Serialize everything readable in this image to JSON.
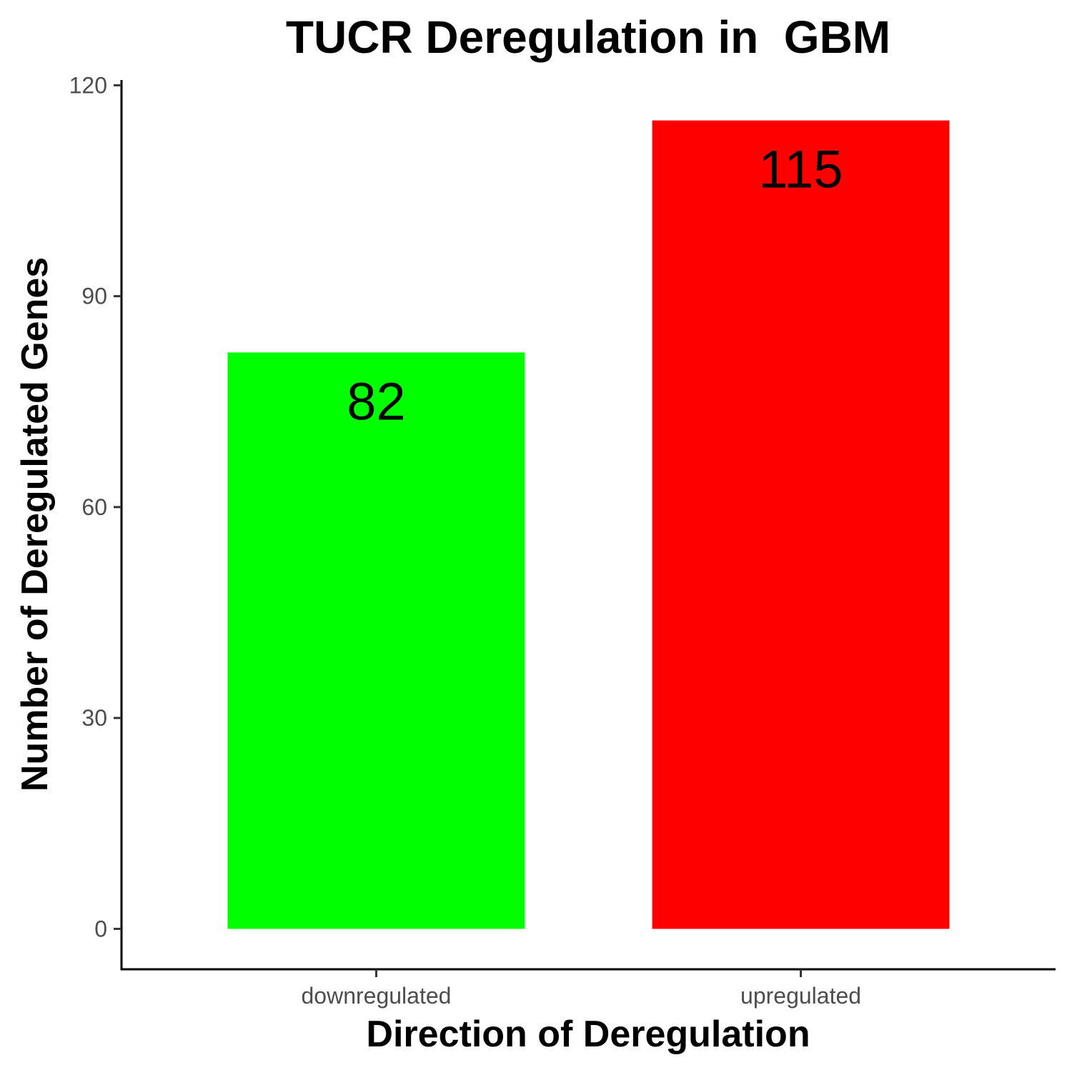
{
  "chart_data": {
    "type": "bar",
    "title": "TUCR Deregulation in  GBM",
    "xlabel": "Direction of Deregulation",
    "ylabel": "Number of Deregulated Genes",
    "categories": [
      "downregulated",
      "upregulated"
    ],
    "values": [
      82,
      115
    ],
    "data_labels": [
      "82",
      "115"
    ],
    "bar_colors": [
      "#00ff00",
      "#ff0000"
    ],
    "yticks": [
      0,
      30,
      60,
      90,
      120
    ],
    "ytick_labels": [
      "0",
      "30",
      "60",
      "90",
      "120"
    ],
    "ylim": [
      -5.75,
      120.75
    ],
    "grid": false,
    "legend": "none"
  }
}
